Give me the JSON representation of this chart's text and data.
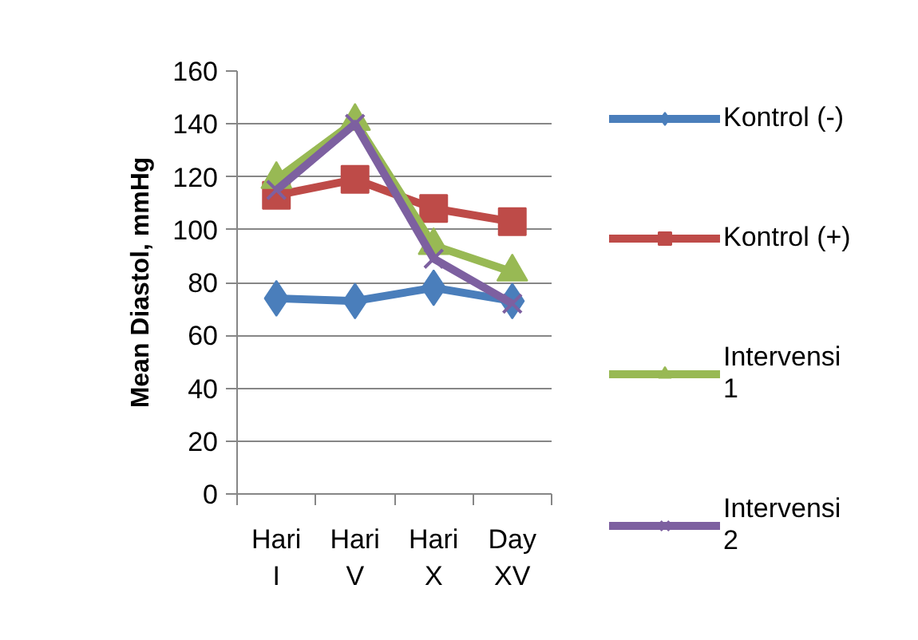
{
  "chart_data": {
    "type": "line",
    "ylabel": "Mean Diastol, mmHg",
    "categories": [
      "Hari I",
      "Hari V",
      "Hari X",
      "Day XV"
    ],
    "ylim": [
      0,
      160
    ],
    "yticks": [
      0,
      20,
      40,
      60,
      80,
      100,
      120,
      140,
      160
    ],
    "grid": "y",
    "legend": "right",
    "line_style": "solid",
    "series": [
      {
        "name": "Kontrol (-)",
        "color": "#4a7ebb",
        "marker": "diamond",
        "values": [
          74,
          73,
          78,
          73
        ]
      },
      {
        "name": "Kontrol (+)",
        "color": "#be4b48",
        "marker": "square",
        "values": [
          113,
          119,
          108,
          103
        ]
      },
      {
        "name": "Intervensi 1",
        "color": "#98b954",
        "marker": "triangle",
        "values": [
          119,
          141,
          94,
          84
        ]
      },
      {
        "name": "Intervensi 2",
        "color": "#7d60a0",
        "marker": "x",
        "values": [
          115,
          140,
          89,
          72
        ]
      }
    ]
  }
}
